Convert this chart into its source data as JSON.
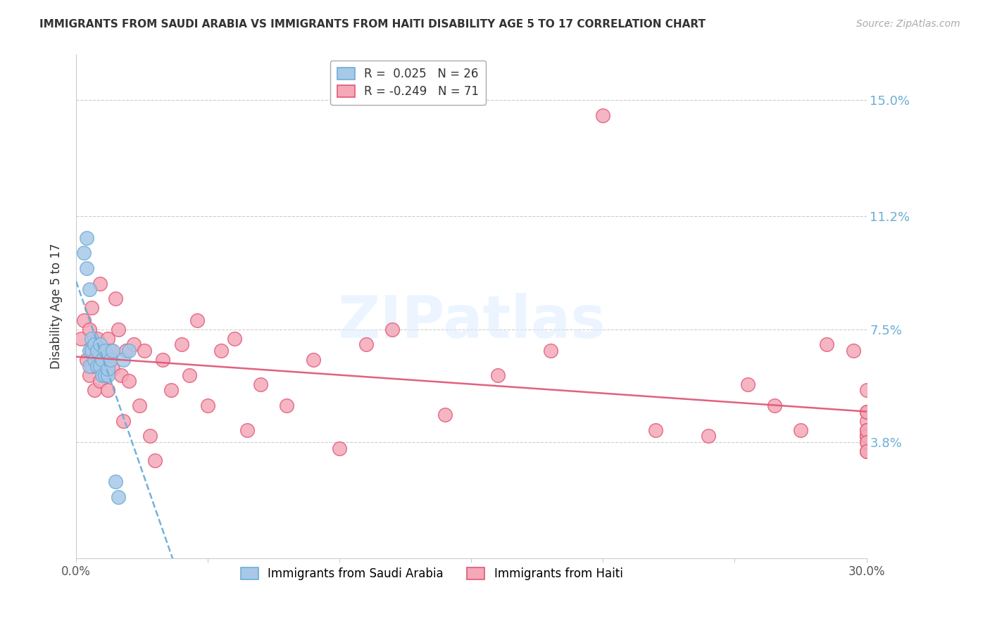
{
  "title": "IMMIGRANTS FROM SAUDI ARABIA VS IMMIGRANTS FROM HAITI DISABILITY AGE 5 TO 17 CORRELATION CHART",
  "source": "Source: ZipAtlas.com",
  "ylabel": "Disability Age 5 to 17",
  "ytick_labels": [
    "15.0%",
    "11.2%",
    "7.5%",
    "3.8%"
  ],
  "ytick_values": [
    0.15,
    0.112,
    0.075,
    0.038
  ],
  "xlim": [
    0.0,
    0.3
  ],
  "ylim": [
    0.0,
    0.165
  ],
  "color_saudi": "#a8c8e8",
  "color_haiti": "#f4a8b8",
  "color_saudi_line": "#6baed6",
  "color_haiti_line": "#e05878",
  "watermark": "ZIPatlas",
  "saudi_x": [
    0.003,
    0.004,
    0.004,
    0.005,
    0.005,
    0.005,
    0.006,
    0.006,
    0.007,
    0.007,
    0.008,
    0.008,
    0.009,
    0.009,
    0.01,
    0.01,
    0.011,
    0.011,
    0.012,
    0.012,
    0.013,
    0.014,
    0.015,
    0.016,
    0.018,
    0.02
  ],
  "saudi_y": [
    0.1,
    0.105,
    0.095,
    0.088,
    0.068,
    0.063,
    0.068,
    0.072,
    0.065,
    0.07,
    0.063,
    0.068,
    0.063,
    0.07,
    0.06,
    0.065,
    0.06,
    0.068,
    0.06,
    0.062,
    0.065,
    0.068,
    0.025,
    0.02,
    0.065,
    0.068
  ],
  "haiti_x": [
    0.002,
    0.003,
    0.004,
    0.005,
    0.005,
    0.006,
    0.006,
    0.007,
    0.007,
    0.008,
    0.008,
    0.009,
    0.009,
    0.01,
    0.01,
    0.011,
    0.012,
    0.012,
    0.013,
    0.013,
    0.014,
    0.015,
    0.016,
    0.017,
    0.018,
    0.019,
    0.02,
    0.022,
    0.024,
    0.026,
    0.028,
    0.03,
    0.033,
    0.036,
    0.04,
    0.043,
    0.046,
    0.05,
    0.055,
    0.06,
    0.065,
    0.07,
    0.08,
    0.09,
    0.1,
    0.11,
    0.12,
    0.14,
    0.16,
    0.18,
    0.2,
    0.22,
    0.24,
    0.255,
    0.265,
    0.275,
    0.285,
    0.295,
    0.3,
    0.3,
    0.3,
    0.3,
    0.3,
    0.3,
    0.3,
    0.3,
    0.3,
    0.3,
    0.3,
    0.3,
    0.3
  ],
  "haiti_y": [
    0.072,
    0.078,
    0.065,
    0.06,
    0.075,
    0.063,
    0.082,
    0.055,
    0.07,
    0.065,
    0.072,
    0.058,
    0.09,
    0.062,
    0.068,
    0.06,
    0.072,
    0.055,
    0.068,
    0.065,
    0.062,
    0.085,
    0.075,
    0.06,
    0.045,
    0.068,
    0.058,
    0.07,
    0.05,
    0.068,
    0.04,
    0.032,
    0.065,
    0.055,
    0.07,
    0.06,
    0.078,
    0.05,
    0.068,
    0.072,
    0.042,
    0.057,
    0.05,
    0.065,
    0.036,
    0.07,
    0.075,
    0.047,
    0.06,
    0.068,
    0.145,
    0.042,
    0.04,
    0.057,
    0.05,
    0.042,
    0.07,
    0.068,
    0.045,
    0.04,
    0.038,
    0.055,
    0.048,
    0.04,
    0.042,
    0.048,
    0.035,
    0.04,
    0.042,
    0.038,
    0.035
  ]
}
